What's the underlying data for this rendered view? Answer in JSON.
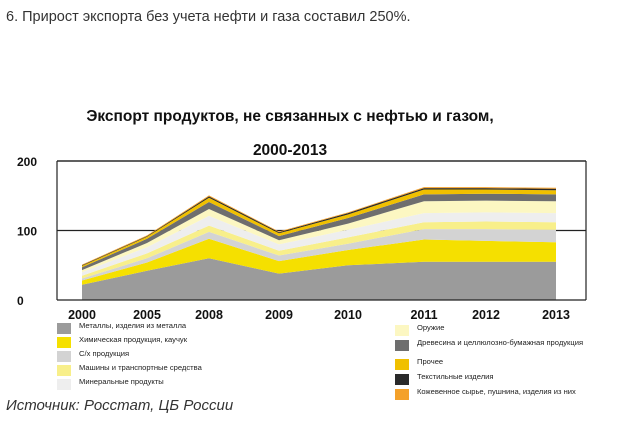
{
  "heading": "6. Прирост экспорта без учета нефти и газа составил 250%.",
  "source": "Источник: Росстат, ЦБ России",
  "chart_data": {
    "type": "area",
    "stacked": true,
    "title_line1": "Экспорт продуктов, не связанных с нефтью и газом,",
    "title_line2": "2000-2013",
    "categories": [
      "2000",
      "2005",
      "2008",
      "2009",
      "2010",
      "2011",
      "2012",
      "2013"
    ],
    "x_positions": [
      0,
      1,
      2,
      3,
      4,
      5,
      6,
      7
    ],
    "xlabel": "",
    "ylabel": "",
    "ylim": [
      0,
      200
    ],
    "yticks": [
      0,
      100,
      200
    ],
    "grid": "horizontal",
    "legend_placement": "bottom",
    "series": [
      {
        "name": "Металлы, изделия из металла",
        "color": "#9b9b9b",
        "values": [
          22,
          42,
          60,
          38,
          50,
          55,
          55,
          55
        ]
      },
      {
        "name": "Химическая продукция, каучук",
        "color": "#f5e000",
        "values": [
          6,
          12,
          28,
          18,
          22,
          32,
          30,
          28
        ]
      },
      {
        "name": "С/х продукция",
        "color": "#d3d3d3",
        "values": [
          3,
          6,
          10,
          8,
          9,
          15,
          17,
          18
        ]
      },
      {
        "name": "Машины и транспортные средства",
        "color": "#f8ef8a",
        "values": [
          4,
          7,
          9,
          7,
          9,
          10,
          11,
          11
        ]
      },
      {
        "name": "Минеральные продукты",
        "color": "#eeeeee",
        "values": [
          5,
          9,
          14,
          9,
          11,
          13,
          13,
          13
        ]
      },
      {
        "name": "Оружие",
        "color": "#fcf7c2",
        "values": [
          3,
          6,
          10,
          6,
          9,
          17,
          17,
          17
        ]
      },
      {
        "name": "Древесина и целлюлозно-бумажная продукция",
        "color": "#6e6e6e",
        "values": [
          4,
          6,
          10,
          6,
          8,
          10,
          10,
          10
        ]
      },
      {
        "name": "Прочее",
        "color": "#f0c000",
        "values": [
          2,
          3,
          6,
          4,
          5,
          7,
          6,
          6
        ]
      },
      {
        "name": "Текстильные изделия",
        "color": "#2a2a2a",
        "values": [
          1,
          1,
          2,
          1.5,
          2,
          2,
          2,
          2
        ]
      },
      {
        "name": "Кожевенное сырье, пушнина, изделия из них",
        "color": "#f4a12a",
        "values": [
          1,
          1,
          1.5,
          1,
          1,
          1.5,
          1.5,
          1.5
        ]
      }
    ]
  }
}
